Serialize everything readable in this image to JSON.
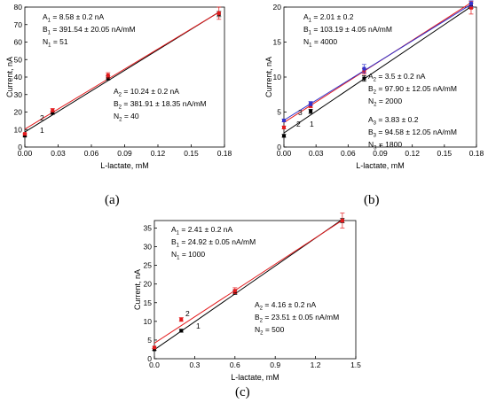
{
  "chart_data": [
    {
      "type": "scatter",
      "panel_label": "(a)",
      "xlabel": "L-lactate, mM",
      "ylabel": "Current, nA",
      "xlim": [
        0,
        0.18
      ],
      "ylim": [
        0,
        80
      ],
      "xticks": [
        "0.00",
        "0.03",
        "0.06",
        "0.09",
        "0.12",
        "0.15",
        "0.18"
      ],
      "yticks": [
        "0",
        "10",
        "20",
        "30",
        "40",
        "50",
        "60",
        "70",
        "80"
      ],
      "series": [
        {
          "label": "1",
          "color": "#000000",
          "x": [
            0,
            0.025,
            0.075,
            0.175
          ],
          "y": [
            6.5,
            19.5,
            39.5,
            76
          ],
          "err": [
            0.5,
            0.8,
            1.2,
            1.5
          ],
          "fit": {
            "intercept": 8.58,
            "slope": 391.54
          }
        },
        {
          "label": "2",
          "color": "#e31a1c",
          "x": [
            0,
            0.025,
            0.075,
            0.175
          ],
          "y": [
            7.5,
            21,
            41,
            76.5
          ],
          "err": [
            0.5,
            1.0,
            1.5,
            3.5
          ],
          "fit": {
            "intercept": 10.24,
            "slope": 381.91
          }
        }
      ],
      "annotations": [
        {
          "lines": [
            {
              "name": "A",
              "sub": "1",
              "text": " = 8.58 ± 0.2 nA"
            },
            {
              "name": "B",
              "sub": "1",
              "text": " = 391.54 ± 20.05 nA/mM"
            },
            {
              "name": "N",
              "sub": "1",
              "text": " = 51"
            }
          ]
        },
        {
          "lines": [
            {
              "name": "A",
              "sub": "2",
              "text": " = 10.24 ± 0.2 nA"
            },
            {
              "name": "B",
              "sub": "2",
              "text": " = 381.91 ± 18.35 nA/mM"
            },
            {
              "name": "N",
              "sub": "2",
              "text": " = 40"
            }
          ]
        }
      ]
    },
    {
      "type": "scatter",
      "panel_label": "(b)",
      "xlabel": "L-lactate, mM",
      "ylabel": "Current, nA",
      "xlim": [
        0,
        0.18
      ],
      "ylim": [
        0,
        20
      ],
      "xticks": [
        "0.00",
        "0.03",
        "0.06",
        "0.09",
        "0.12",
        "0.15",
        "0.18"
      ],
      "yticks": [
        "0",
        "5",
        "10",
        "15",
        "20"
      ],
      "series": [
        {
          "label": "1",
          "color": "#000000",
          "x": [
            0,
            0.025,
            0.075,
            0.175
          ],
          "y": [
            1.6,
            5.1,
            9.8,
            20.2
          ],
          "err": [
            0.2,
            0.3,
            0.4,
            0.4
          ],
          "fit": {
            "intercept": 2.01,
            "slope": 103.19
          }
        },
        {
          "label": "2",
          "color": "#e31a1c",
          "x": [
            0,
            0.025,
            0.075,
            0.175
          ],
          "y": [
            2.8,
            5.9,
            10.8,
            19.9
          ],
          "err": [
            0.2,
            0.3,
            0.4,
            0.9
          ],
          "fit": {
            "intercept": 3.5,
            "slope": 97.9
          }
        },
        {
          "label": "3",
          "color": "#3333cc",
          "x": [
            0,
            0.025,
            0.075,
            0.175
          ],
          "y": [
            3.8,
            6.2,
            11.2,
            20.5
          ],
          "err": [
            0.2,
            0.3,
            0.6,
            0.4
          ],
          "fit": {
            "intercept": 3.83,
            "slope": 94.58
          }
        }
      ],
      "annotations": [
        {
          "lines": [
            {
              "name": "A",
              "sub": "1",
              "text": " = 2.01 ± 0.2"
            },
            {
              "name": "B",
              "sub": "1",
              "text": " = 103.19 ± 4.05 nA/mM"
            },
            {
              "name": "N",
              "sub": "1",
              "text": " = 4000"
            }
          ]
        },
        {
          "lines": [
            {
              "name": "A",
              "sub": "2",
              "text": " = 3.5 ± 0.2 nA"
            },
            {
              "name": "B",
              "sub": "2",
              "text": " = 97.90 ± 12.05 nA/mM"
            },
            {
              "name": "N",
              "sub": "2",
              "text": " = 2000"
            }
          ]
        },
        {
          "lines": [
            {
              "name": "A",
              "sub": "3",
              "text": " = 3.83 ± 0.2"
            },
            {
              "name": "B",
              "sub": "3",
              "text": " = 94.58 ± 12.05 nA/mM"
            },
            {
              "name": "N",
              "sub": "3",
              "text": " = 1800"
            }
          ]
        }
      ]
    },
    {
      "type": "scatter",
      "panel_label": "(c)",
      "xlabel": "L-lactate, mM",
      "ylabel": "Current, nA",
      "xlim": [
        0,
        1.5
      ],
      "ylim": [
        0,
        37
      ],
      "xticks": [
        "0.0",
        "0.3",
        "0.6",
        "0.9",
        "1.2",
        "1.5"
      ],
      "yticks": [
        "0",
        "5",
        "10",
        "15",
        "20",
        "25",
        "30",
        "35"
      ],
      "series": [
        {
          "label": "1",
          "color": "#000000",
          "x": [
            0,
            0.2,
            0.6,
            1.4
          ],
          "y": [
            2.5,
            7.5,
            17.8,
            37
          ],
          "err": [
            0.3,
            0.4,
            0.6,
            0.6
          ],
          "fit": {
            "intercept": 2.41,
            "slope": 24.92
          }
        },
        {
          "label": "2",
          "color": "#e31a1c",
          "x": [
            0,
            0.2,
            0.6,
            1.4
          ],
          "y": [
            3.0,
            10.5,
            18.2,
            37
          ],
          "err": [
            0.3,
            0.5,
            0.8,
            2.0
          ],
          "fit": {
            "intercept": 4.16,
            "slope": 23.51
          }
        }
      ],
      "annotations": [
        {
          "lines": [
            {
              "name": "A",
              "sub": "1",
              "text": " = 2.41 ± 0.2 nA"
            },
            {
              "name": "B",
              "sub": "1",
              "text": " = 24.92 ± 0.05 nA/mM"
            },
            {
              "name": "N",
              "sub": "1",
              "text": " = 1000"
            }
          ]
        },
        {
          "lines": [
            {
              "name": "A",
              "sub": "2",
              "text": " = 4.16 ± 0.2 nA"
            },
            {
              "name": "B",
              "sub": "2",
              "text": " = 23.51 ± 0.05 nA/mM"
            },
            {
              "name": "N",
              "sub": "2",
              "text": " = 500"
            }
          ]
        }
      ]
    }
  ]
}
